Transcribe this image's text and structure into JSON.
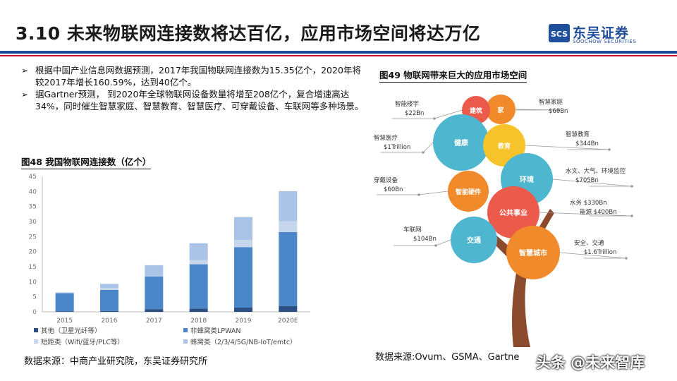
{
  "header": {
    "title": "3.10 未来物联网连接数将达百亿，应用市场空间将达万亿"
  },
  "logo": {
    "name": "东吴证券",
    "english": "SOOCHOW SECURITIES",
    "mark_text": "SCS"
  },
  "bullets": [
    "根据中国产业信息网数据预测，2017年我国物联网连接数为15.35亿个，2020年将较2017年增长160.59%，达到40亿个。",
    "据Gartner预测， 到2020年全球物联网设备数量将增至208亿个，复合增速高达34%，同时催生智慧家庭、智慧教育、智慧医疗、可穿戴设备、车联网等多种场景。"
  ],
  "left_figure": {
    "title": "图48 我国物联网连接数（亿个）",
    "source": "数据来源：中商产业研究院，东吴证券研究所"
  },
  "right_figure": {
    "title": "图49 物联网带来巨大的应用市场空间",
    "source": "数据来源:Ovum、GSMA、Gartne"
  },
  "watermark": "头条 @未来智库",
  "colors": {
    "navy": "#1f4e9c",
    "red": "#c8102e",
    "dark": "#2b4f82",
    "mid": "#4a86c8",
    "light": "#a9c4e6",
    "pale": "#c7d6ea"
  },
  "chart_data": [
    {
      "type": "bar",
      "stacked": true,
      "categories": [
        "2015",
        "2016",
        "2017",
        "2018",
        "2019",
        "2020E"
      ],
      "series": [
        {
          "name": "其他（卫星光纤等）",
          "values": [
            0.2,
            0.3,
            0.9,
            1.1,
            1.4,
            1.9
          ]
        },
        {
          "name": "非蜂窝类LPWAN",
          "values": [
            6.0,
            7.0,
            10.9,
            14.7,
            20.1,
            24.6
          ]
        },
        {
          "name": "短距类（Wifi/蓝牙/PLC等）",
          "values": [
            0.2,
            0.6,
            0.2,
            1.4,
            2.4,
            3.6
          ]
        },
        {
          "name": "蜂窝类（2/3/4/5G/NB-IoT/emtc）",
          "values": [
            0.1,
            1.4,
            3.5,
            5.6,
            7.6,
            10.0
          ]
        }
      ],
      "ylim": [
        0,
        45
      ],
      "yticks": [
        "0",
        "5",
        "10",
        "15",
        "20",
        "25",
        "30",
        "35",
        "40",
        "45"
      ],
      "grid": false,
      "legend": "bottom"
    },
    {
      "type": "diagram",
      "nodes": [
        {
          "label": "家",
          "app": "智慧家庭",
          "value": "$60Bn"
        },
        {
          "label": "建筑",
          "app": "智能楼宇",
          "value": "$22Bn"
        },
        {
          "label": "健康",
          "app": "智慧医疗",
          "value": "$1Trillion"
        },
        {
          "label": "教育",
          "app": "智慧教育",
          "value": "$344Bn"
        },
        {
          "label": "环境",
          "app": "水文、大气、环境监控",
          "value": "$705Bn"
        },
        {
          "label": "智能硬件",
          "app": "穿戴设备",
          "value": "$60Bn"
        },
        {
          "label": "公共事业",
          "app": "水务 $330Bn",
          "value": "能源 $400Bn"
        },
        {
          "label": "交通",
          "app": "车联网",
          "value": "$104Bn"
        },
        {
          "label": "智慧城市",
          "app": "安全、交通",
          "value": "$1.6Trillion"
        }
      ]
    }
  ]
}
